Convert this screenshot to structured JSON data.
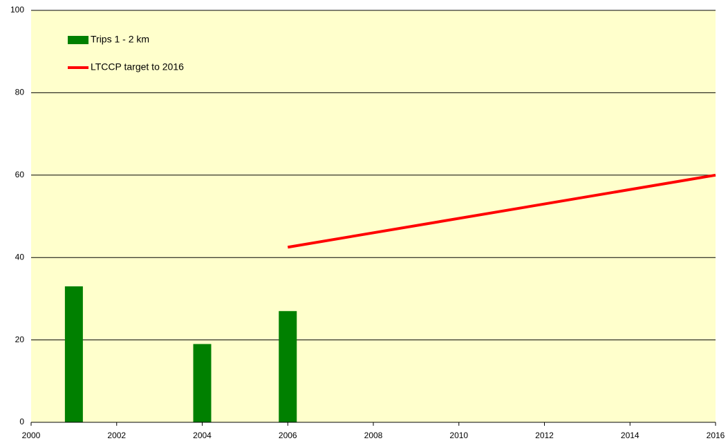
{
  "chart_data": {
    "type": "combo",
    "series": [
      {
        "name": "Trips 1 - 2 km",
        "type": "bar",
        "color": "#008000",
        "x": [
          2001,
          2004,
          2006
        ],
        "values": [
          33,
          19,
          27
        ]
      },
      {
        "name": "LTCCP target to 2016",
        "type": "line",
        "color": "#ff0000",
        "x": [
          2006,
          2016
        ],
        "values": [
          42.5,
          60
        ]
      }
    ],
    "xlim": [
      2000,
      2016
    ],
    "xticks": [
      2000,
      2002,
      2004,
      2006,
      2008,
      2010,
      2012,
      2014,
      2016
    ],
    "ylim": [
      0,
      100
    ],
    "yticks": [
      0,
      20,
      40,
      60,
      80,
      100
    ],
    "grid": true,
    "legend": "upper left",
    "background": "#ffffcc"
  }
}
